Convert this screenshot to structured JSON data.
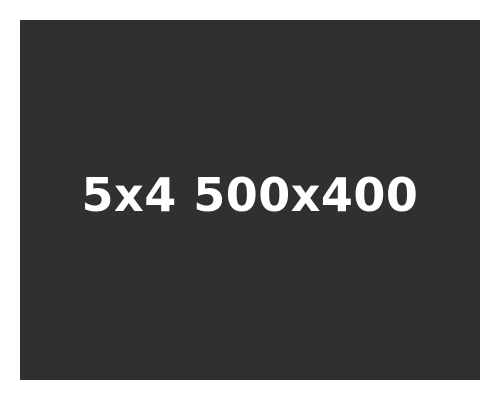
{
  "placeholder": {
    "label": "5x4 500x400",
    "colors": {
      "page_background": "#ffffff",
      "panel_background": "#303030",
      "text": "#ffffff"
    }
  }
}
